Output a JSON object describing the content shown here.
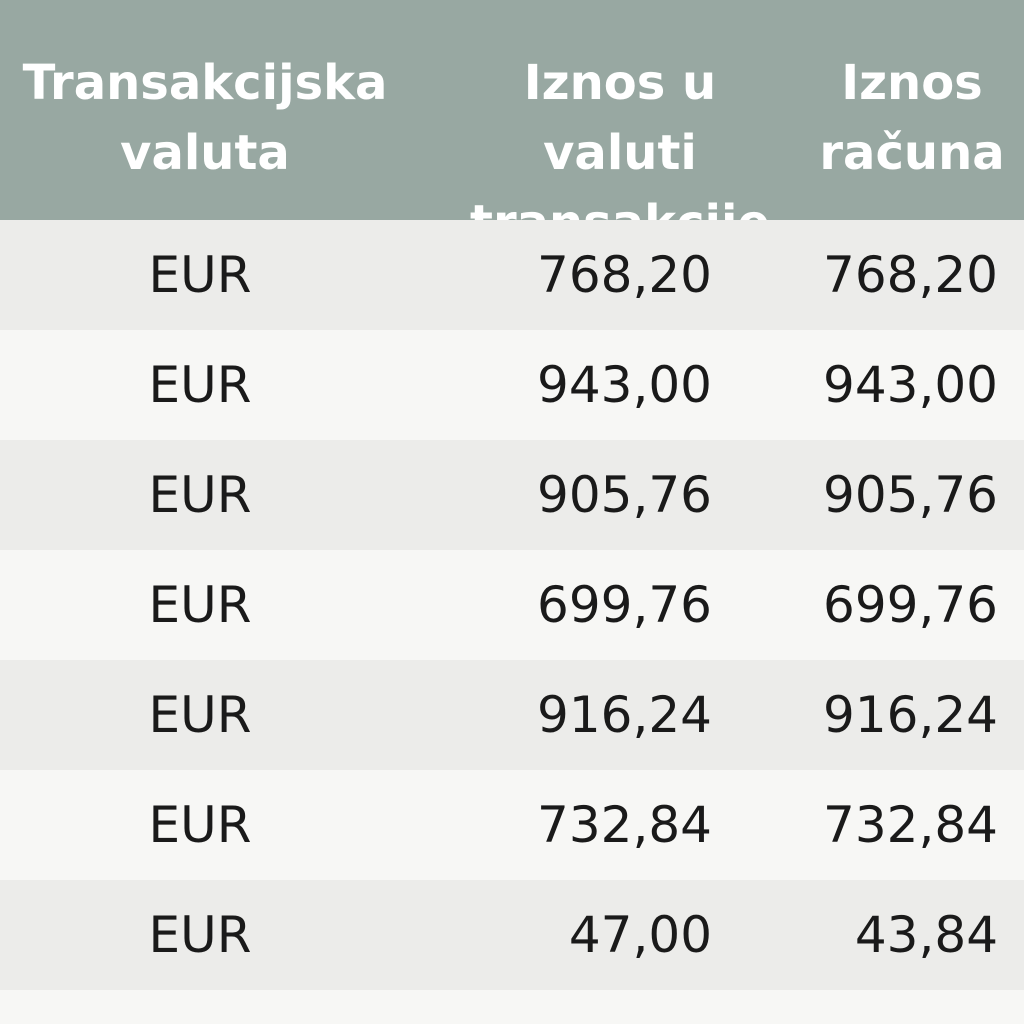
{
  "table": {
    "headers": [
      "Transakcijska\nvaluta",
      "Iznos u valuti\ntransakcije",
      "Iznos\nračuna"
    ],
    "rows": [
      [
        "EUR",
        "768,20",
        "768,20"
      ],
      [
        "EUR",
        "943,00",
        "943,00"
      ],
      [
        "EUR",
        "905,76",
        "905,76"
      ],
      [
        "EUR",
        "699,76",
        "699,76"
      ],
      [
        "EUR",
        "916,24",
        "916,24"
      ],
      [
        "EUR",
        "732,84",
        "732,84"
      ],
      [
        "EUR",
        "47,00",
        "43,84"
      ]
    ]
  },
  "colors": {
    "header_bg": "#98a8a2",
    "header_text": "#ffffff",
    "row_shade": "#ececea",
    "row_plain": "#f7f7f5"
  }
}
